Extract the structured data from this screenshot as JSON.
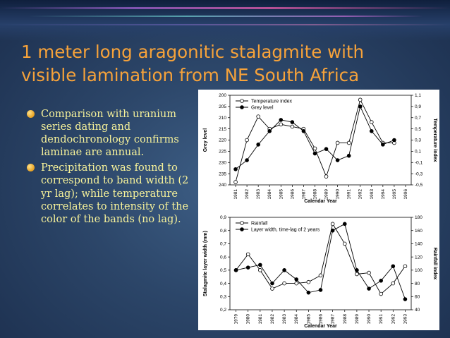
{
  "slide": {
    "title_line1": "1 meter long aragonitic stalagmite with",
    "title_line2": "visible lamination from NE South Africa",
    "bullets": [
      "Comparison with uranium series dating and dendochronology confirms laminae are annual.",
      "Precipitation was found to correspond to band width (2 yr lag); while temperature correlates to intensity of the color of the bands (no lag)."
    ]
  },
  "chart_data": [
    {
      "type": "line",
      "xlabel": "Calendar Year",
      "ylabel_left": "Grey level",
      "ylabel_right": "Temperature index",
      "x_ticks": [
        "1981",
        "1982",
        "1983",
        "1984",
        "1985",
        "1986",
        "1987",
        "1988",
        "1989",
        "1990",
        "1991",
        "1992",
        "1993",
        "1994",
        "1995",
        "1996"
      ],
      "y_left_ticks": [
        "200",
        "205",
        "210",
        "215",
        "220",
        "225",
        "230",
        "235",
        "240"
      ],
      "y_left_range": [
        200,
        240
      ],
      "y_left_inverted": true,
      "y_right_ticks": [
        "1,1",
        "0,9",
        "0,7",
        "0,5",
        "0,3",
        "0,1",
        "-0,1",
        "-0,3",
        "-0,5"
      ],
      "y_right_range": [
        -0.5,
        1.1
      ],
      "legend_position": "top-left",
      "series": [
        {
          "name": "Temperature index",
          "axis": "right",
          "marker": "open-circle",
          "x": [
            1981,
            1982,
            1983,
            1984,
            1985,
            1986,
            1987,
            1988,
            1989,
            1990,
            1991,
            1992,
            1993,
            1994,
            1995
          ],
          "values": [
            -0.45,
            0.3,
            0.72,
            0.5,
            0.58,
            0.54,
            0.5,
            0.15,
            -0.35,
            0.25,
            0.25,
            1.02,
            0.62,
            0.25,
            0.25
          ]
        },
        {
          "name": "Grey level",
          "axis": "left",
          "marker": "filled-circle",
          "x": [
            1981,
            1982,
            1983,
            1984,
            1985,
            1986,
            1987,
            1988,
            1989,
            1990,
            1991,
            1992,
            1993,
            1994,
            1995
          ],
          "values": [
            233,
            229,
            222,
            216,
            211,
            212,
            216,
            226,
            224,
            229,
            227,
            205,
            216,
            222,
            220
          ]
        }
      ]
    },
    {
      "type": "line",
      "xlabel": "Calendar Year",
      "ylabel_left": "Stalagmite layer width (mm)",
      "ylabel_right": "Rainfall index",
      "x_ticks": [
        "1979",
        "1980",
        "1981",
        "1982",
        "1983",
        "1984",
        "1985",
        "1986",
        "1987",
        "1988",
        "1989",
        "1990",
        "1991",
        "1992",
        "1993"
      ],
      "y_left_ticks": [
        "0,2",
        "0,3",
        "0,4",
        "0,5",
        "0,6",
        "0,7",
        "0,8",
        "0,9"
      ],
      "y_left_range": [
        0.2,
        0.9
      ],
      "y_right_ticks": [
        "40",
        "60",
        "80",
        "100",
        "120",
        "140",
        "160",
        "180"
      ],
      "y_right_range": [
        40,
        180
      ],
      "legend_position": "top-left",
      "series": [
        {
          "name": "Rainfall",
          "axis": "right",
          "marker": "open-circle",
          "x": [
            1979,
            1980,
            1981,
            1982,
            1983,
            1984,
            1985,
            1986,
            1987,
            1988,
            1989,
            1990,
            1991,
            1992,
            1993
          ],
          "values": [
            100,
            124,
            100,
            72,
            80,
            80,
            82,
            92,
            170,
            140,
            94,
            96,
            64,
            80,
            106
          ]
        },
        {
          "name": "Layer width, time-lag of 2 years",
          "axis": "left",
          "marker": "filled-circle",
          "x": [
            1979,
            1980,
            1981,
            1982,
            1983,
            1984,
            1985,
            1986,
            1987,
            1988,
            1989,
            1990,
            1991,
            1992,
            1993
          ],
          "values": [
            0.5,
            0.52,
            0.54,
            0.4,
            0.5,
            0.43,
            0.33,
            0.35,
            0.8,
            0.85,
            0.5,
            0.36,
            0.42,
            0.53,
            0.28
          ]
        }
      ]
    }
  ]
}
